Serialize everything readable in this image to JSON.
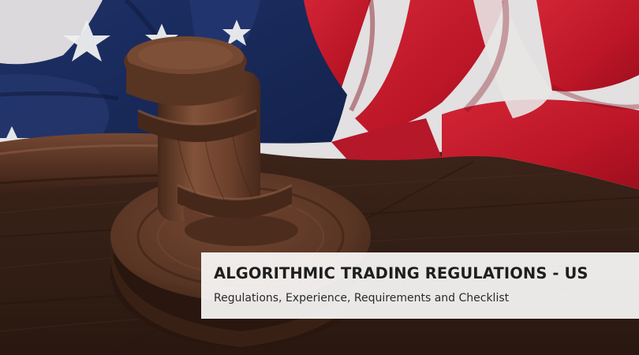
{
  "banner": {
    "title": "ALGORITHMIC TRADING REGULATIONS - US",
    "subtitle": "Regulations, Experience, Requirements and Checklist"
  },
  "colors": {
    "flag_red": "#d81f30",
    "flag_blue": "#1c2f6a",
    "flag_white": "#f4f2f2",
    "wood_dark": "#3b2419",
    "wood_mid": "#6b4330",
    "banner_bg": "#ffffff",
    "title_text": "#1e1e1e"
  },
  "image": {
    "subject": "wooden-gavel-on-sounding-block-with-american-flag"
  }
}
